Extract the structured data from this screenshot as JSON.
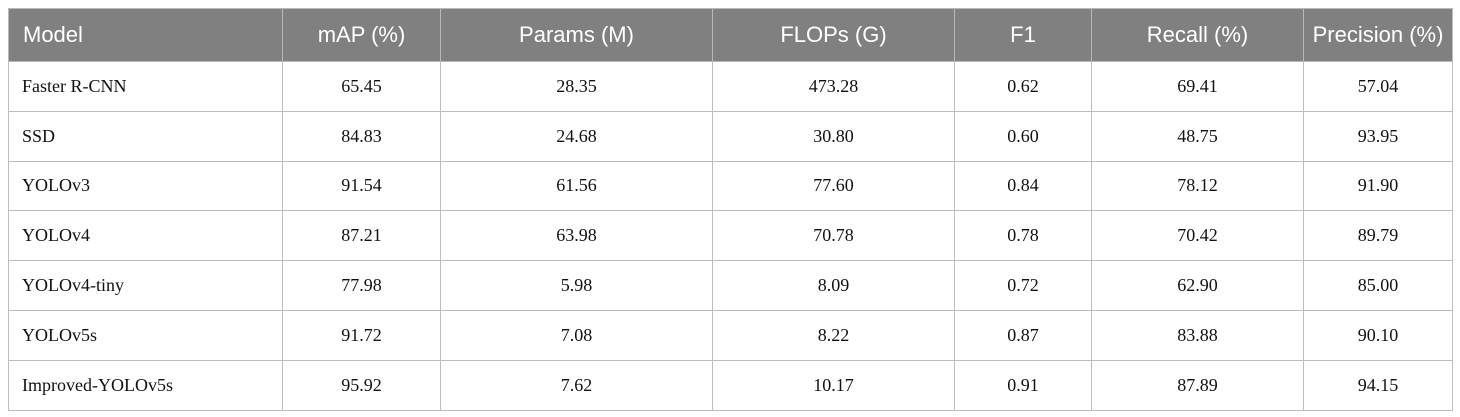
{
  "table": {
    "headers": [
      "Model",
      "mAP (%)",
      "Params (M)",
      "FLOPs (G)",
      "F1",
      "Recall (%)",
      "Precision (%)"
    ],
    "rows": [
      [
        "Faster R-CNN",
        "65.45",
        "28.35",
        "473.28",
        "0.62",
        "69.41",
        "57.04"
      ],
      [
        "SSD",
        "84.83",
        "24.68",
        "30.80",
        "0.60",
        "48.75",
        "93.95"
      ],
      [
        "YOLOv3",
        "91.54",
        "61.56",
        "77.60",
        "0.84",
        "78.12",
        "91.90"
      ],
      [
        "YOLOv4",
        "87.21",
        "63.98",
        "70.78",
        "0.78",
        "70.42",
        "89.79"
      ],
      [
        "YOLOv4-tiny",
        "77.98",
        "5.98",
        "8.09",
        "0.72",
        "62.90",
        "85.00"
      ],
      [
        "YOLOv5s",
        "91.72",
        "7.08",
        "8.22",
        "0.87",
        "83.88",
        "90.10"
      ],
      [
        "Improved-YOLOv5s",
        "95.92",
        "7.62",
        "10.17",
        "0.91",
        "87.89",
        "94.15"
      ]
    ]
  },
  "colors": {
    "header_background": "#808080",
    "header_text": "#ffffff",
    "grid_line": "#bdbdbd"
  }
}
